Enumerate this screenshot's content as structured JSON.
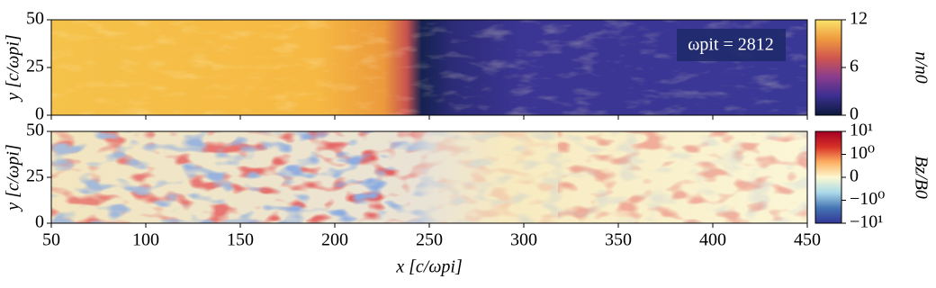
{
  "chart_data": [
    {
      "type": "heatmap",
      "ylabel": "y [c/ωpi]",
      "xlim": [
        50,
        450
      ],
      "ylim": [
        0,
        50
      ],
      "yticks": [
        0,
        25,
        50
      ],
      "annotation": "ωpit = 2812",
      "colorbar": {
        "label": "n/n0",
        "lim": [
          0,
          12
        ],
        "ticks": [
          0,
          6,
          12
        ],
        "scale": "linear",
        "colors": [
          "#0c1a3c",
          "#3b2f8f",
          "#8a3c8e",
          "#d0564f",
          "#f09a3e",
          "#f9e36a"
        ]
      }
    },
    {
      "type": "heatmap",
      "ylabel": "y [c/ωpi]",
      "xlabel": "x [c/ωpi]",
      "xlim": [
        50,
        450
      ],
      "ylim": [
        0,
        50
      ],
      "yticks": [
        0,
        25,
        50
      ],
      "xticks": [
        50,
        100,
        150,
        200,
        250,
        300,
        350,
        400,
        450
      ],
      "colorbar": {
        "label": "Bz/B0",
        "lim": [
          -10,
          10
        ],
        "scale": "symlog",
        "ticks": [
          {
            "value": 10,
            "label": "10¹"
          },
          {
            "value": 1,
            "label": "10⁰"
          },
          0,
          {
            "value": -1,
            "label": "−10⁰"
          },
          {
            "value": -10,
            "label": "−10¹"
          }
        ],
        "colors": [
          "#313695",
          "#4575b4",
          "#abd9e9",
          "#fbf8d0",
          "#fdae61",
          "#d73027",
          "#a50026"
        ]
      }
    }
  ]
}
